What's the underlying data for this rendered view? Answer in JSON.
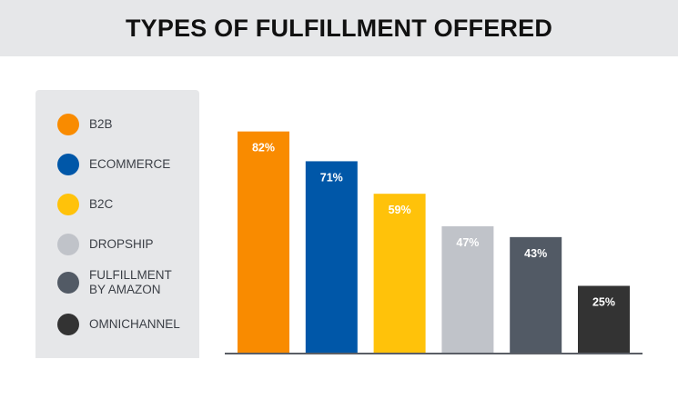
{
  "chart_data": {
    "type": "bar",
    "title": "TYPES OF FULFILLMENT OFFERED",
    "categories": [
      "B2B",
      "ECOMMERCE",
      "B2C",
      "DROPSHIP",
      "FULFILLMENT\nBY AMAZON",
      "OMNICHANNEL"
    ],
    "values": [
      82,
      71,
      59,
      47,
      43,
      25
    ],
    "data_labels": [
      "82%",
      "71%",
      "59%",
      "47%",
      "43%",
      "25%"
    ],
    "colors": [
      "#f98b00",
      "#0057a8",
      "#ffc20a",
      "#c0c3c9",
      "#525a65",
      "#333333"
    ],
    "label_colors": [
      "#ffffff",
      "#ffffff",
      "#ffffff",
      "#ffffff",
      "#ffffff",
      "#ffffff"
    ],
    "ylim": [
      0,
      100
    ],
    "grid": false,
    "legend_position": "left"
  }
}
